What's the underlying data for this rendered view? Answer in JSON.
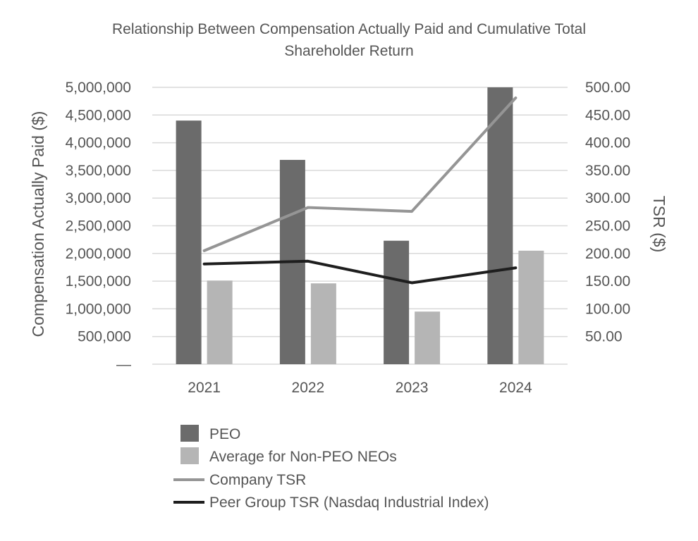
{
  "chart_data": {
    "type": "bar",
    "title_lines": [
      "Relationship Between Compensation Actually Paid and Cumulative Total",
      "Shareholder Return"
    ],
    "categories": [
      "2021",
      "2022",
      "2023",
      "2024"
    ],
    "ylabel_left": "Compensation Actually Paid ($)",
    "ylabel_right": "TSR ($)",
    "ylim_left": [
      0,
      5000000
    ],
    "ylim_right": [
      0,
      500
    ],
    "left_ticks": [
      {
        "value": 0,
        "label": "—"
      },
      {
        "value": 500000,
        "label": "500,000"
      },
      {
        "value": 1000000,
        "label": "1,000,000"
      },
      {
        "value": 1500000,
        "label": "1,500,000"
      },
      {
        "value": 2000000,
        "label": "2,000,000"
      },
      {
        "value": 2500000,
        "label": "2,500,000"
      },
      {
        "value": 3000000,
        "label": "3,000,000"
      },
      {
        "value": 3500000,
        "label": "3,500,000"
      },
      {
        "value": 4000000,
        "label": "4,000,000"
      },
      {
        "value": 4500000,
        "label": "4,500,000"
      },
      {
        "value": 5000000,
        "label": "5,000,000"
      }
    ],
    "right_ticks": [
      {
        "value": 50,
        "label": "50.00"
      },
      {
        "value": 100,
        "label": "100.00"
      },
      {
        "value": 150,
        "label": "150.00"
      },
      {
        "value": 200,
        "label": "200.00"
      },
      {
        "value": 250,
        "label": "250.00"
      },
      {
        "value": 300,
        "label": "300.00"
      },
      {
        "value": 350,
        "label": "350.00"
      },
      {
        "value": 400,
        "label": "400.00"
      },
      {
        "value": 450,
        "label": "450.00"
      },
      {
        "value": 500,
        "label": "500.00"
      }
    ],
    "bar_series": [
      {
        "name": "PEO",
        "color": "#6b6b6b",
        "values": [
          4400000,
          3690000,
          2230000,
          5000000
        ]
      },
      {
        "name": "Average for Non-PEO NEOs",
        "color": "#b5b5b5",
        "values": [
          1510000,
          1460000,
          950000,
          2050000
        ]
      }
    ],
    "line_series": [
      {
        "name": "Company TSR",
        "color": "#959595",
        "values": [
          205,
          283,
          276,
          481
        ]
      },
      {
        "name": "Peer Group TSR (Nasdaq Industrial Index)",
        "color": "#1e1e1e",
        "values": [
          181,
          186,
          147,
          174
        ]
      }
    ],
    "grid": true,
    "legend_position": "bottom"
  }
}
